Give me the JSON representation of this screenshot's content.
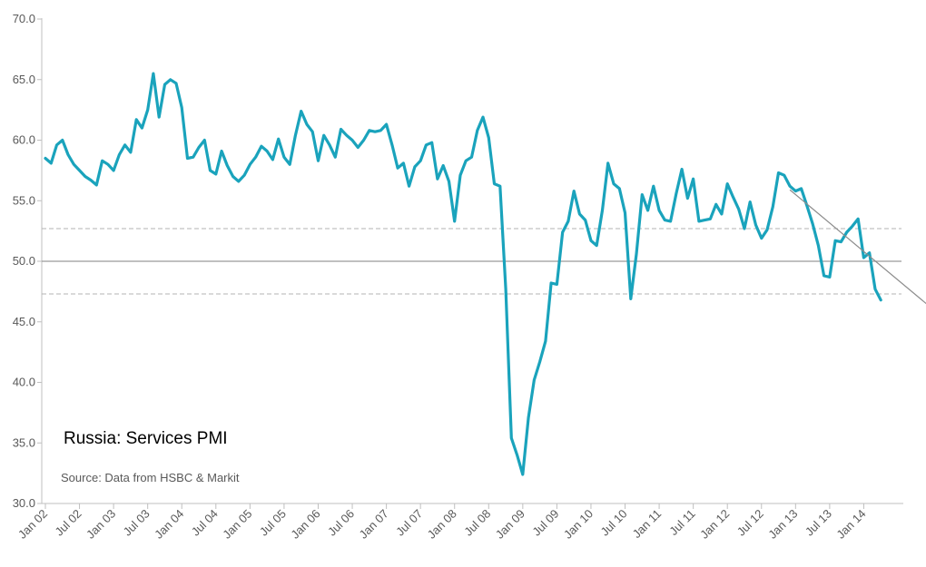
{
  "chart_data": {
    "type": "line",
    "title": "Russia: Services PMI",
    "source": "Source: Data from HSBC & Markit",
    "ylim": [
      30,
      70
    ],
    "y_ticks": [
      "30.0",
      "35.0",
      "40.0",
      "45.0",
      "50.0",
      "55.0",
      "60.0",
      "65.0",
      "70.0"
    ],
    "x_ticks": [
      "Jan 02",
      "Jul 02",
      "Jan 03",
      "Jul 03",
      "Jan 04",
      "Jul 04",
      "Jan 05",
      "Jul 05",
      "Jan 06",
      "Jul 06",
      "Jan 07",
      "Jul 07",
      "Jan 08",
      "Jul 08",
      "Jan 09",
      "Jul 09",
      "Jan 10",
      "Jul 10",
      "Jan 11",
      "Jul 11",
      "Jan 12",
      "Jul 12",
      "Jan 13",
      "Jul 13",
      "Jan 14"
    ],
    "start_month": "Jan 02",
    "colors": {
      "series": "#1AA3BC",
      "axis": "#bfbfbf",
      "reference": "#9a9a9a",
      "band": "#b3b3b3",
      "trend": "#8c8c8c"
    },
    "series": [
      {
        "name": "Russia Services PMI",
        "values": [
          58.5,
          58.1,
          59.6,
          60.0,
          58.8,
          58.0,
          57.5,
          57.0,
          56.7,
          56.3,
          58.3,
          58.0,
          57.5,
          58.8,
          59.6,
          59.0,
          61.7,
          61.0,
          62.5,
          65.5,
          61.9,
          64.6,
          65.0,
          64.7,
          62.7,
          58.5,
          58.6,
          59.4,
          60.0,
          57.5,
          57.2,
          59.1,
          57.9,
          57.0,
          56.6,
          57.1,
          58.0,
          58.6,
          59.5,
          59.1,
          58.4,
          60.1,
          58.6,
          58.0,
          60.4,
          62.4,
          61.3,
          60.7,
          58.3,
          60.4,
          59.6,
          58.6,
          60.9,
          60.4,
          60.0,
          59.4,
          60.0,
          60.8,
          60.7,
          60.8,
          61.3,
          59.6,
          57.7,
          58.1,
          56.2,
          57.8,
          58.3,
          59.6,
          59.8,
          56.8,
          57.9,
          56.6,
          53.3,
          57.1,
          58.3,
          58.6,
          60.8,
          61.9,
          60.2,
          56.4,
          56.2,
          47.7,
          35.4,
          34.0,
          32.4,
          37.1,
          40.2,
          41.7,
          43.4,
          48.2,
          48.1,
          52.4,
          53.3,
          55.8,
          53.9,
          53.4,
          51.7,
          51.3,
          54.2,
          58.1,
          56.4,
          56.0,
          54.0,
          46.9,
          50.6,
          55.5,
          54.2,
          56.2,
          54.2,
          53.4,
          53.3,
          55.6,
          57.6,
          55.2,
          56.8,
          53.3,
          53.4,
          53.5,
          54.7,
          53.9,
          56.4,
          55.3,
          54.3,
          52.7,
          54.9,
          53.0,
          51.9,
          52.6,
          54.5,
          57.3,
          57.1,
          56.2,
          55.8,
          56.0,
          54.6,
          53.1,
          51.3,
          48.8,
          48.7,
          51.7,
          51.6,
          52.4,
          52.9,
          53.5,
          50.3,
          50.7,
          47.7,
          46.8
        ]
      }
    ],
    "reference_lines": [
      {
        "name": "50-threshold",
        "value": 50.0,
        "style": "solid"
      },
      {
        "name": "upper-band",
        "value": 52.7,
        "style": "dashed"
      },
      {
        "name": "lower-band",
        "value": 47.3,
        "style": "dashed"
      }
    ],
    "trend_line": {
      "start_month_index": 131,
      "start_value": 55.9,
      "end_month_index": 155,
      "end_value": 46.5
    },
    "grid": false,
    "legend": "none"
  }
}
